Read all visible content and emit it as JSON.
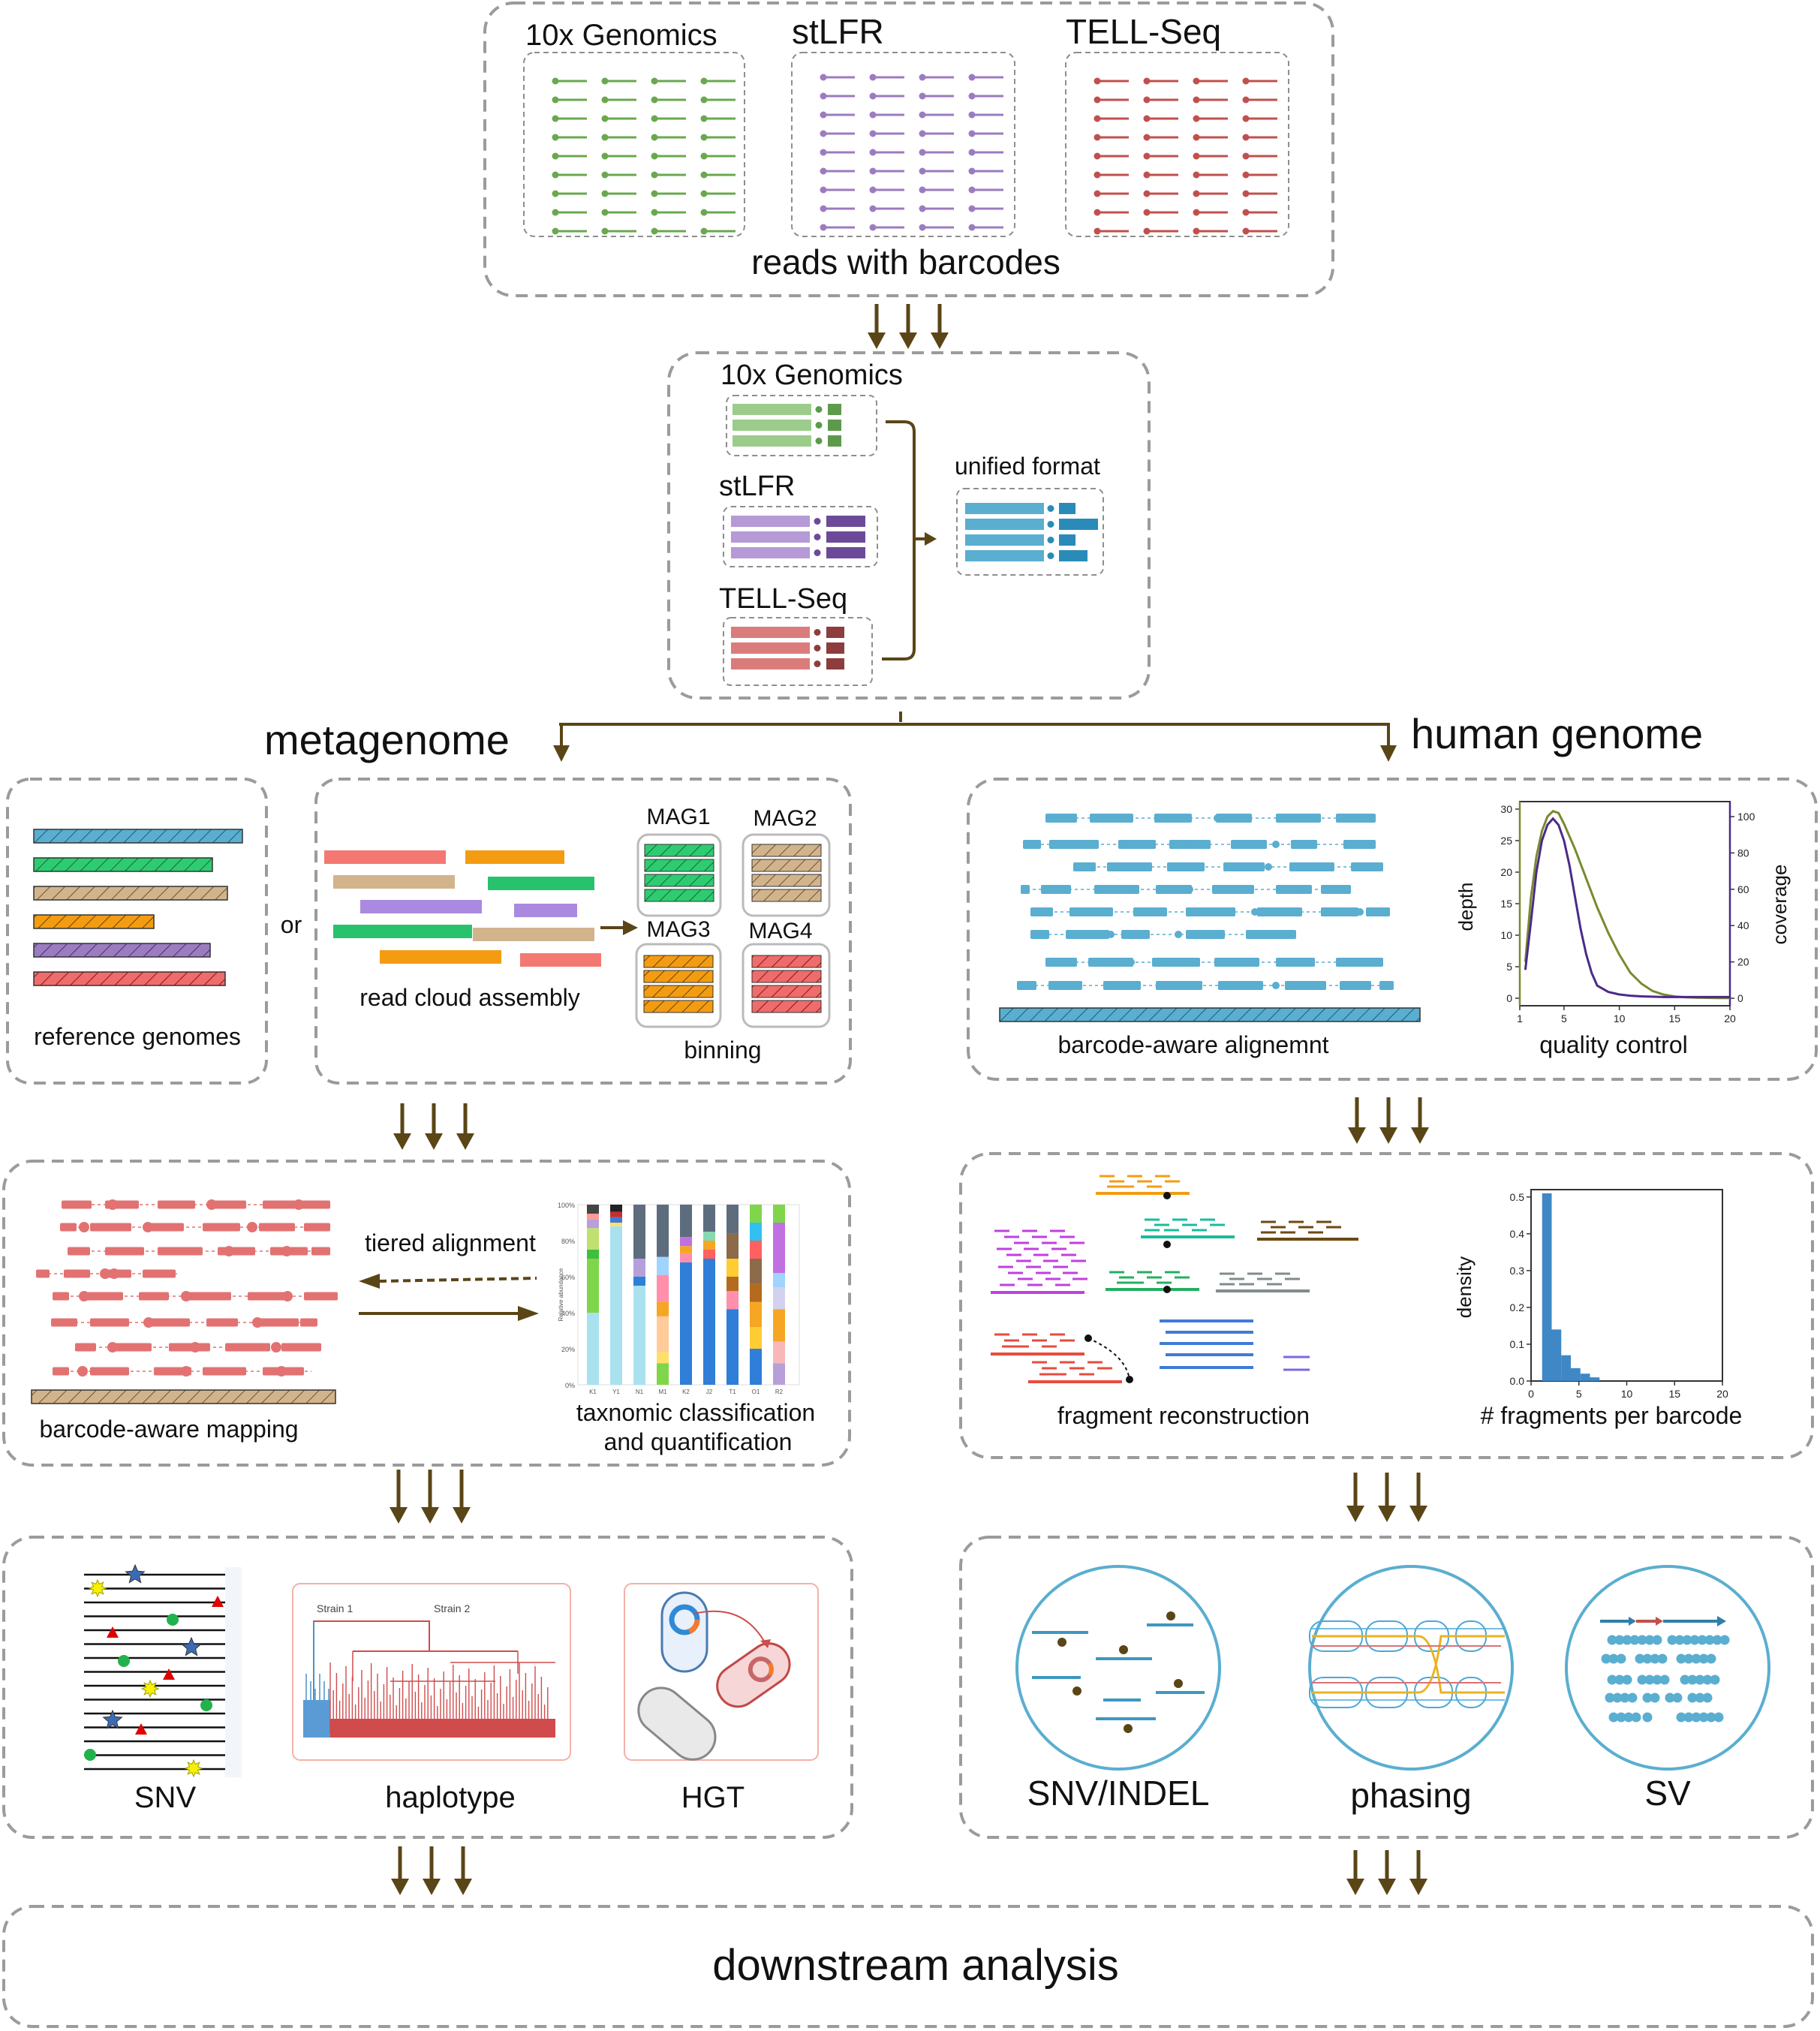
{
  "input": {
    "platforms": [
      "10x Genomics",
      "stLFR",
      "TELL-Seq"
    ],
    "caption": "reads with barcodes"
  },
  "conversion": {
    "platforms": [
      "10x Genomics",
      "stLFR",
      "TELL-Seq"
    ],
    "unified_label": "unified format"
  },
  "branches": {
    "left": "metagenome",
    "right": "human genome"
  },
  "metagenome": {
    "or_label": "or",
    "reference_label": "reference genomes",
    "assembly_label": "read cloud assembly",
    "binning_label": "binning",
    "mags": [
      "MAG1",
      "MAG2",
      "MAG3",
      "MAG4"
    ],
    "tiered_label": "tiered alignment",
    "mapping_label": "barcode-aware mapping",
    "taxonomic_label_1": "taxnomic classification",
    "taxonomic_label_2": "and quantification",
    "snv_label": "SNV",
    "haplotype_label": "haplotype",
    "hgt_label": "HGT",
    "strain1_label": "Strain 1",
    "strain2_label": "Strain 2"
  },
  "human": {
    "alignment_label": "barcode-aware alignemnt",
    "qc_label": "quality control",
    "fragment_label": "fragment reconstruction",
    "frag_per_barcode_label": "# fragments per barcode",
    "snv_label": "SNV/INDEL",
    "phasing_label": "phasing",
    "sv_label": "SV"
  },
  "downstream_label": "downstream analysis",
  "chart_data": [
    {
      "type": "line",
      "title": "",
      "xlabel": "quality control",
      "ylabel": "depth",
      "y2label": "coverage",
      "x_ticks": [
        "1",
        "5",
        "10",
        "15",
        "20"
      ],
      "y_ticks": [
        "0",
        "5",
        "10",
        "15",
        "20",
        "25",
        "30"
      ],
      "y2_ticks": [
        "0",
        "20",
        "40",
        "60",
        "80",
        "100"
      ],
      "xlim": [
        1,
        20
      ],
      "ylim": [
        0,
        30
      ],
      "y2lim": [
        0,
        100
      ],
      "series": [
        {
          "color": "#7a8a2e",
          "axis": "right",
          "x": [
            1.5,
            2,
            2.5,
            3,
            3.5,
            4,
            4.5,
            5,
            6,
            7,
            8,
            9,
            10,
            11,
            12,
            13,
            14,
            15,
            16,
            17,
            18,
            19,
            20
          ],
          "values": [
            20,
            55,
            78,
            92,
            100,
            103,
            102,
            96,
            82,
            66,
            50,
            36,
            24,
            14,
            8,
            4,
            2,
            1,
            0.5,
            0.3,
            0.2,
            0.1,
            0.1
          ]
        },
        {
          "color": "#4b2a8a",
          "axis": "left",
          "x": [
            1.5,
            2,
            2.5,
            3,
            3.5,
            4,
            4.5,
            5,
            5.5,
            6,
            6.5,
            7,
            7.5,
            8,
            9,
            10,
            11,
            12,
            14,
            16,
            18,
            20
          ],
          "values": [
            4.5,
            12,
            20,
            25,
            27.5,
            28.5,
            27.5,
            25,
            21,
            16,
            11,
            7,
            4,
            2,
            1,
            0.6,
            0.4,
            0.3,
            0.2,
            0.2,
            0.2,
            0.2
          ]
        }
      ]
    },
    {
      "type": "bar",
      "title": "",
      "xlabel": "# fragments per barcode",
      "ylabel": "density",
      "x_ticks": [
        "0",
        "5",
        "10",
        "15",
        "20"
      ],
      "y_ticks": [
        "0.0",
        "0.1",
        "0.2",
        "0.3",
        "0.4",
        "0.5"
      ],
      "xlim": [
        0,
        20
      ],
      "ylim": [
        0,
        0.52
      ],
      "bin_width": 1,
      "categories": [
        1,
        2,
        3,
        4,
        5,
        6
      ],
      "values": [
        0.51,
        0.14,
        0.07,
        0.035,
        0.02,
        0.01
      ]
    },
    {
      "type": "bar",
      "title": "",
      "ylabel": "Relative abundance",
      "y_ticks": [
        "0%",
        "20%",
        "40%",
        "60%",
        "80%",
        "100%"
      ],
      "ylim": [
        0,
        100
      ],
      "categories": [
        "K1",
        "Y1",
        "N1",
        "M1",
        "K2",
        "J2",
        "T1",
        "O1",
        "R2"
      ],
      "stacked": true
    }
  ],
  "colors": {
    "arrow": "#5a4516",
    "green": "#6aa84f",
    "purple": "#9b7cc0",
    "red": "#c0504d",
    "blue": "#5aaed0",
    "salmon": "#f07070",
    "tan": "#d2b48c",
    "orange": "#f39c12",
    "mag_green": "#2ecc71"
  }
}
